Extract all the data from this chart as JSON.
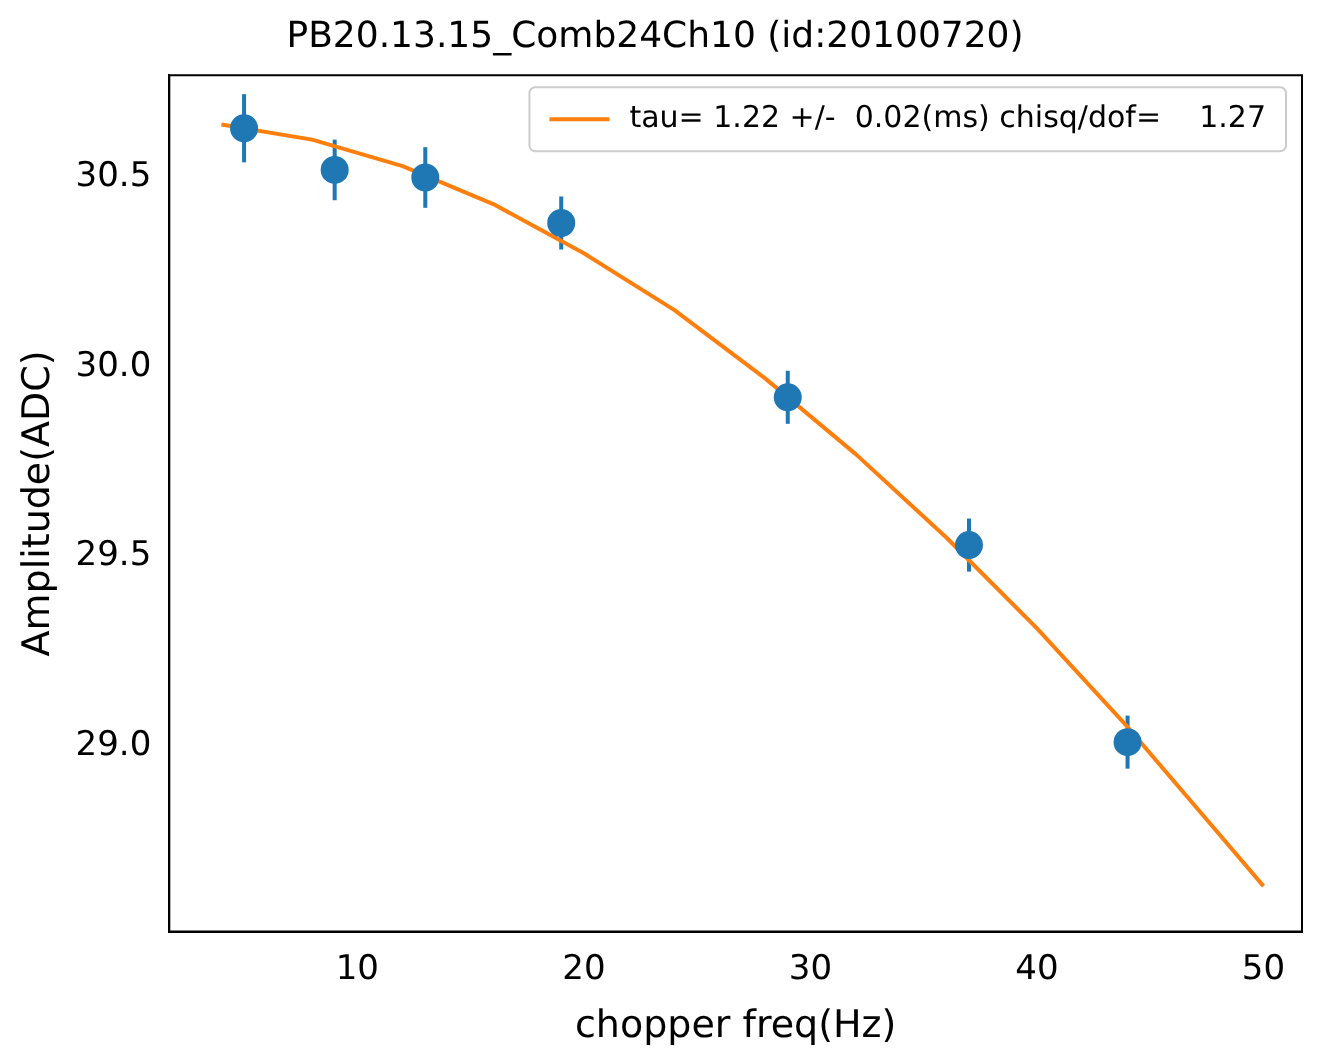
{
  "chart_data": {
    "type": "scatter",
    "title": "PB20.13.15_Comb24Ch10 (id:20100720)",
    "xlabel": "chopper freq(Hz)",
    "ylabel": "Amplitude(ADC)",
    "x": [
      5,
      9,
      13,
      19,
      29,
      37,
      44
    ],
    "series": [
      {
        "color": "#1f77b4",
        "values": [
          30.63,
          30.52,
          30.5,
          30.38,
          29.92,
          29.53,
          29.01
        ],
        "errors": [
          0.09,
          0.08,
          0.08,
          0.07,
          0.07,
          0.07,
          0.07
        ],
        "marker": "circle"
      },
      {
        "type": "line",
        "name": "tau= 1.22 +/-  0.02(ms) chisq/dof=    1.27",
        "color": "#ff7f0e",
        "x": [
          4,
          8,
          12,
          16,
          20,
          24,
          28,
          32,
          36,
          40,
          44,
          48,
          50
        ],
        "values": [
          30.64,
          30.6,
          30.53,
          30.43,
          30.3,
          30.15,
          29.97,
          29.77,
          29.55,
          29.31,
          29.05,
          28.77,
          28.63
        ],
        "marker": "none",
        "line_style": "solid"
      }
    ],
    "xlim": [
      1.7,
      51.7
    ],
    "xticks": [
      10,
      20,
      30,
      40,
      50
    ],
    "ylim": [
      28.51,
      30.77
    ],
    "yticks": [
      {
        "value": 29,
        "label": "29.0"
      },
      29.5,
      {
        "value": 30,
        "label": "30.0"
      },
      30.5
    ],
    "grid": false,
    "legend": "top right"
  }
}
